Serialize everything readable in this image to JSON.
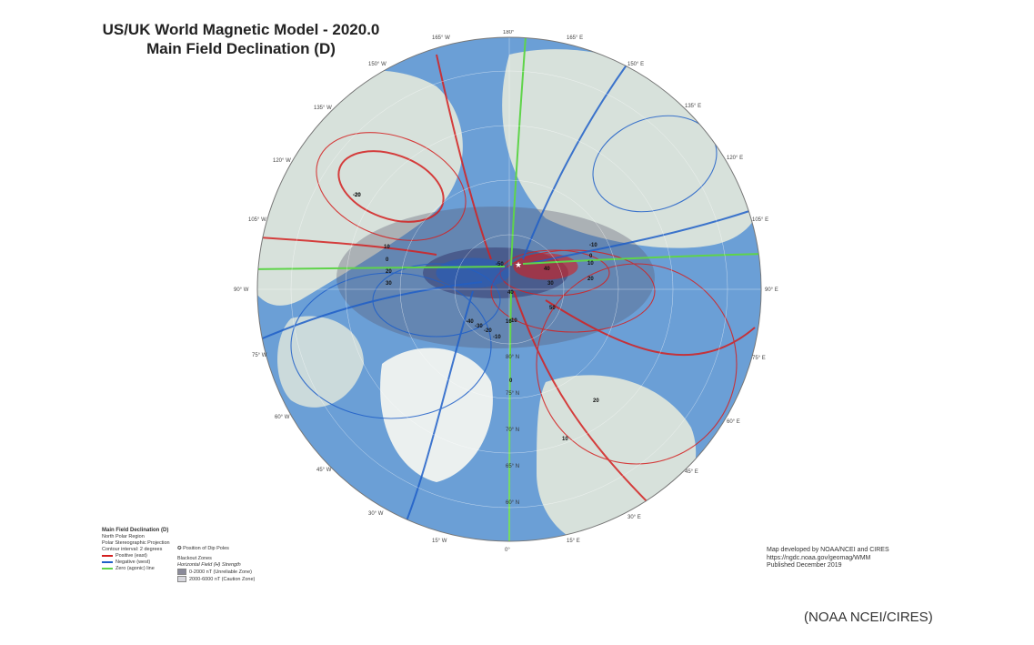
{
  "title_line1": "US/UK World Magnetic Model - 2020.0",
  "title_line2": "Main Field Declination (D)",
  "map": {
    "colors": {
      "ocean": "#6b9fd6",
      "land": "#e3e8dc",
      "positive": "#d42020",
      "negative": "#1f5fc8",
      "zero": "#5fd44a",
      "blackout": "#3a3a5a"
    },
    "longitude_labels": [
      "180°",
      "165° E",
      "150° E",
      "135° E",
      "120° E",
      "105° E",
      "90° E",
      "75° E",
      "60° E",
      "45° E",
      "30° E",
      "15° E",
      "0°",
      "15° W",
      "30° W",
      "45° W",
      "60° W",
      "75° W",
      "90° W",
      "105° W",
      "120° W",
      "135° W",
      "150° W",
      "165° W"
    ],
    "latitude_labels": [
      "80° N",
      "75° N",
      "70° N",
      "65° N",
      "60° N"
    ],
    "contour_labels": [
      "-50",
      "-40",
      "-30",
      "-20",
      "-10",
      "0",
      "10",
      "20",
      "30",
      "40",
      "50",
      "10",
      "20",
      "0",
      "-10",
      "10",
      "0",
      "-10",
      "-20",
      "40",
      "30",
      "20",
      "10",
      "-20"
    ],
    "dip_pole_symbol": "★"
  },
  "legend": {
    "title": "Main Field Declination (D)",
    "lines": [
      "North Polar Region",
      "Polar Stereographic Projection",
      "Contour interval: 2 degrees"
    ],
    "positive": "Positive (east)",
    "negative": "Negative (west)",
    "zero": "Zero (agonic) line",
    "dip_poles": "Position of Dip Poles",
    "blackout_title": "Blackout Zones",
    "blackout_sub": "Horizontal Field (H) Strength",
    "unreliable": "0-2000 nT (Unreliable Zone)",
    "caution": "2000-6000 nT (Caution Zone)"
  },
  "credits": {
    "line1": "Map developed by NOAA/NCEI and CIRES",
    "line2": "https://ngdc.noaa.gov/geomag/WMM",
    "line3": "Published December 2019"
  },
  "caption": "(NOAA NCEI/CIRES)"
}
